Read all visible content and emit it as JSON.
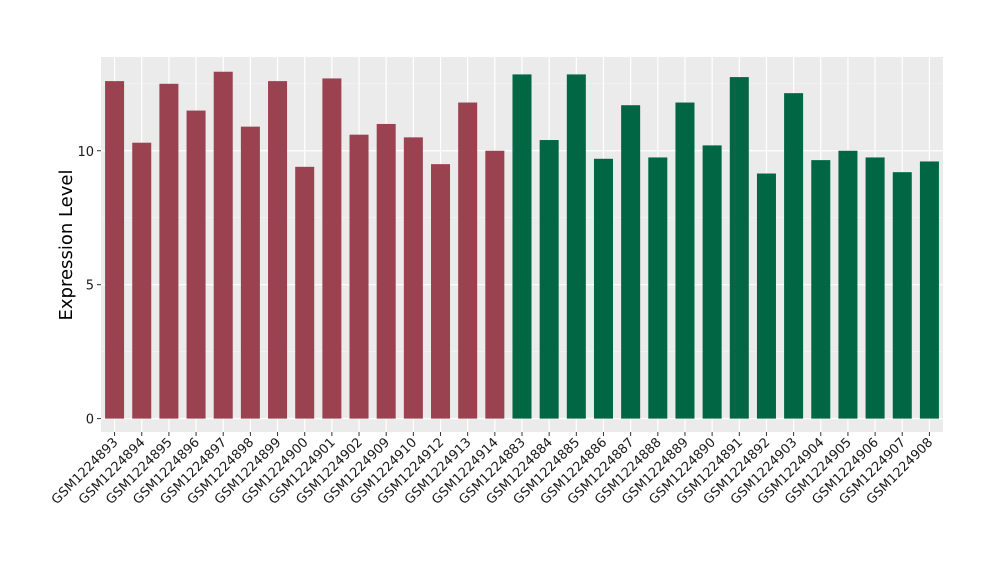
{
  "chart_data": {
    "type": "bar",
    "ylabel": "Expression Level",
    "xlabel": "",
    "ylim": [
      -0.5,
      13.5
    ],
    "yticks": [
      0,
      5,
      10
    ],
    "grid": true,
    "background": "#ebebeb",
    "categories": [
      "GSM1224893",
      "GSM1224894",
      "GSM1224895",
      "GSM1224896",
      "GSM1224897",
      "GSM1224898",
      "GSM1224899",
      "GSM1224900",
      "GSM1224901",
      "GSM1224902",
      "GSM1224909",
      "GSM1224910",
      "GSM1224912",
      "GSM1224913",
      "GSM1224914",
      "GSM1224883",
      "GSM1224884",
      "GSM1224885",
      "GSM1224886",
      "GSM1224887",
      "GSM1224888",
      "GSM1224889",
      "GSM1224890",
      "GSM1224891",
      "GSM1224892",
      "GSM1224903",
      "GSM1224904",
      "GSM1224905",
      "GSM1224906",
      "GSM1224907",
      "GSM1224908"
    ],
    "values": [
      12.6,
      10.3,
      12.5,
      11.5,
      12.95,
      10.9,
      12.6,
      9.4,
      12.7,
      10.6,
      11.0,
      10.5,
      9.5,
      11.8,
      10.0,
      12.85,
      10.4,
      12.85,
      9.7,
      11.7,
      9.75,
      11.8,
      10.2,
      12.75,
      9.15,
      12.15,
      9.65,
      10.0,
      9.75,
      9.2,
      9.6
    ],
    "groups": [
      0,
      0,
      0,
      0,
      0,
      0,
      0,
      0,
      0,
      0,
      0,
      0,
      0,
      0,
      0,
      1,
      1,
      1,
      1,
      1,
      1,
      1,
      1,
      1,
      1,
      1,
      1,
      1,
      1,
      1,
      1
    ],
    "colors": [
      "#9a4250",
      "#006644"
    ]
  }
}
